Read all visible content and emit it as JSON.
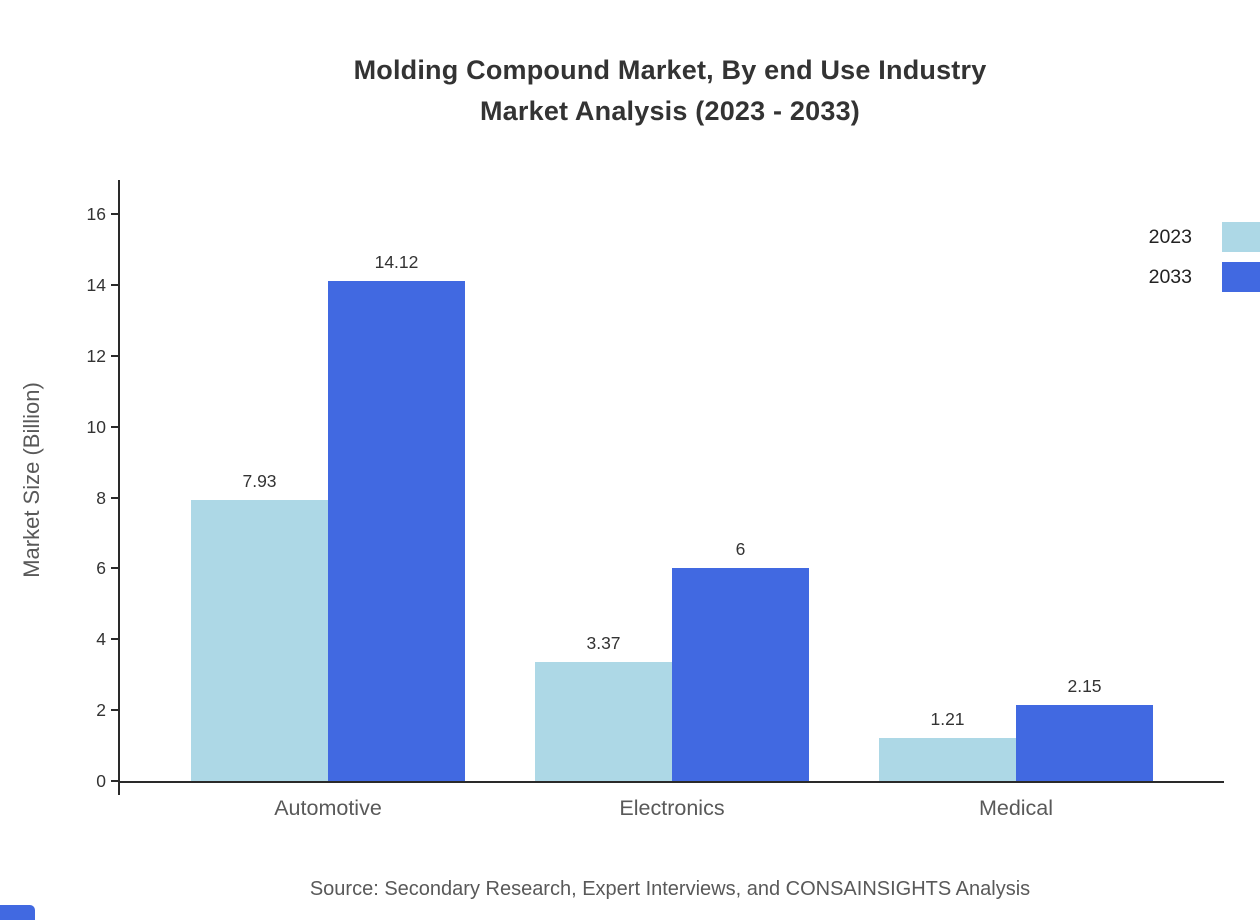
{
  "title": {
    "line1": "Molding Compound Market, By end Use Industry",
    "line2": "Market Analysis (2023 - 2033)"
  },
  "source": "Source: Secondary Research, Expert Interviews, and CONSAINSIGHTS Analysis",
  "chart_data": {
    "type": "bar",
    "title": "Molding Compound Market, By end Use Industry Market Analysis (2023 - 2033)",
    "categories": [
      "Automotive",
      "Electronics",
      "Medical"
    ],
    "series": [
      {
        "name": "2023",
        "color": "#ADD8E6",
        "values": [
          7.93,
          3.37,
          1.21
        ]
      },
      {
        "name": "2033",
        "color": "#4169E1",
        "values": [
          14.12,
          6,
          2.15
        ]
      }
    ],
    "xlabel": "",
    "ylabel": "Market Size (Billion)",
    "ylim": [
      0,
      16
    ],
    "yticks": [
      0,
      2,
      4,
      6,
      8,
      10,
      12,
      14,
      16
    ],
    "grid": false,
    "legend_position": "top-right"
  },
  "colors": {
    "axis": "#2a2a2a",
    "text": "#333333",
    "muted": "#595959",
    "accent": "#4169E1"
  }
}
